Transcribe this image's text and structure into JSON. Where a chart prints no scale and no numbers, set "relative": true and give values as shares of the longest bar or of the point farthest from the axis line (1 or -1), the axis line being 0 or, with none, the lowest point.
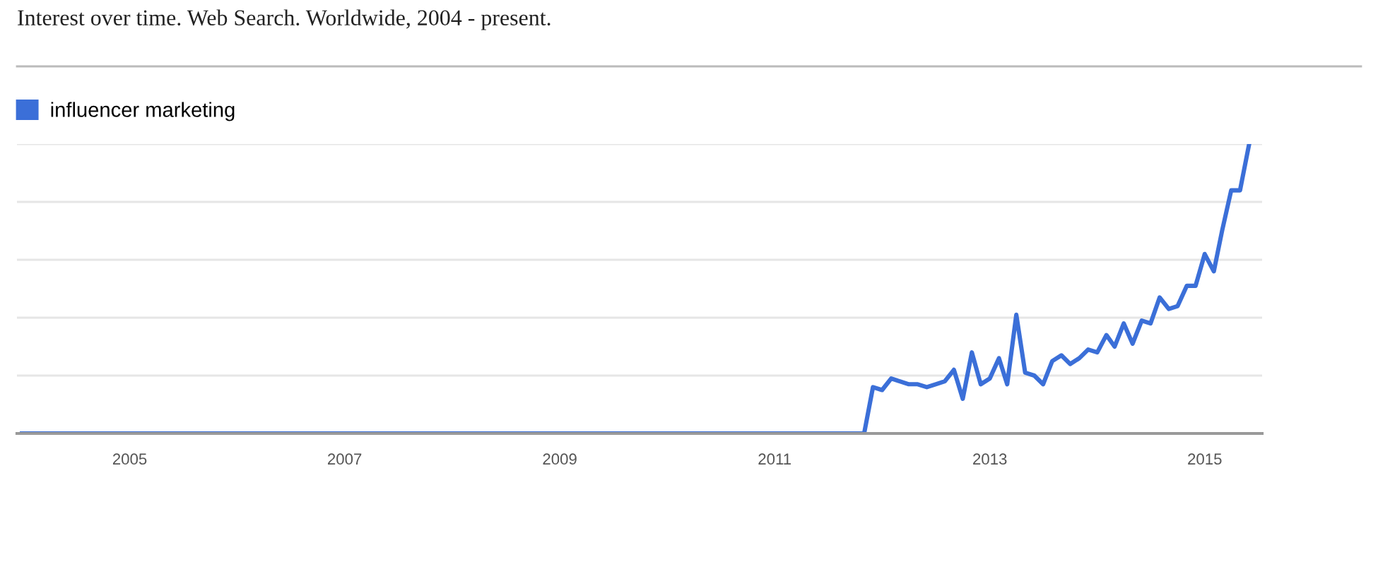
{
  "chart_data": {
    "type": "line",
    "title": "Interest over time. Web Search. Worldwide, 2004 - present.",
    "relative": true,
    "legend": "top left",
    "grid": "y",
    "tick_labels": "x",
    "marker": "none",
    "line_style": "solid",
    "xlim": [
      "2003-12-15",
      "2015-07-15"
    ],
    "xticks": [
      {
        "value": "2005-01-01",
        "label": "2005"
      },
      {
        "value": "2007-01-01",
        "label": "2007"
      },
      {
        "value": "2009-01-01",
        "label": "2009"
      },
      {
        "value": "2011-01-01",
        "label": "2011"
      },
      {
        "value": "2013-01-01",
        "label": "2013"
      },
      {
        "value": "2015-01-01",
        "label": "2015"
      }
    ],
    "x": [
      "2004-01",
      "2011-11",
      "2011-12",
      "2012-01",
      "2012-02",
      "2012-03",
      "2012-04",
      "2012-05",
      "2012-06",
      "2012-07",
      "2012-08",
      "2012-09",
      "2012-10",
      "2012-11",
      "2012-12",
      "2013-01",
      "2013-02",
      "2013-03",
      "2013-04",
      "2013-05",
      "2013-06",
      "2013-07",
      "2013-08",
      "2013-09",
      "2013-10",
      "2013-11",
      "2013-12",
      "2014-01",
      "2014-02",
      "2014-03",
      "2014-04",
      "2014-05",
      "2014-06",
      "2014-07",
      "2014-08",
      "2014-09",
      "2014-10",
      "2014-11",
      "2014-12",
      "2015-01",
      "2015-02",
      "2015-03",
      "2015-04",
      "2015-05",
      "2015-06"
    ],
    "series": [
      {
        "name": "influencer marketing",
        "color": "#3b6fd8",
        "values": [
          0,
          0,
          0.16,
          0.15,
          0.19,
          0.18,
          0.17,
          0.17,
          0.16,
          0.17,
          0.18,
          0.22,
          0.12,
          0.28,
          0.17,
          0.19,
          0.26,
          0.17,
          0.41,
          0.21,
          0.2,
          0.17,
          0.25,
          0.27,
          0.24,
          0.26,
          0.29,
          0.28,
          0.34,
          0.3,
          0.38,
          0.31,
          0.39,
          0.38,
          0.47,
          0.43,
          0.44,
          0.51,
          0.51,
          0.62,
          0.56,
          0.7,
          0.84,
          0.84,
          1
        ]
      }
    ]
  }
}
